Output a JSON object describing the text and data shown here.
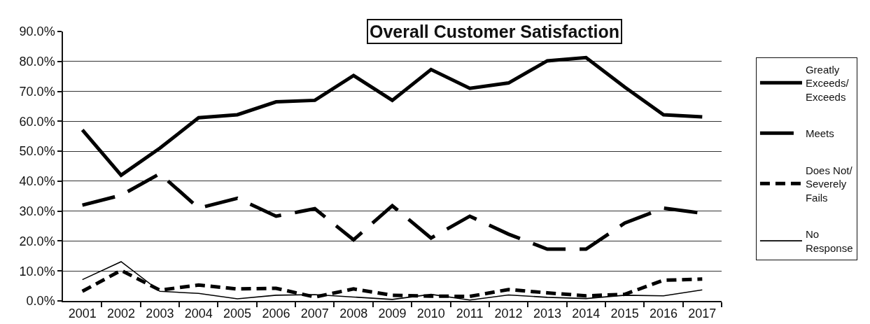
{
  "chart_data": {
    "type": "line",
    "title": "Overall Customer Satisfaction",
    "categories": [
      "2001",
      "2002",
      "2003",
      "2004",
      "2005",
      "2006",
      "2007",
      "2008",
      "2009",
      "2010",
      "2011",
      "2012",
      "2013",
      "2014",
      "2015",
      "2016",
      "2017"
    ],
    "series": [
      {
        "name": "Greatly Exceeds/Exceeds",
        "color": "#000000",
        "line_style": "solid",
        "values": [
          57.1,
          42.0,
          51.0,
          61.2,
          62.2,
          66.5,
          67.0,
          75.3,
          67.0,
          77.3,
          71.0,
          72.8,
          80.2,
          81.3,
          71.4,
          62.2,
          61.5
        ]
      },
      {
        "name": "Meets",
        "color": "#000000",
        "line_style": "dashed",
        "values": [
          32.0,
          35.3,
          42.5,
          31.0,
          34.3,
          28.3,
          30.8,
          20.4,
          31.8,
          21.0,
          28.3,
          22.3,
          17.3,
          17.3,
          26.0,
          31.0,
          29.3
        ]
      },
      {
        "name": "Does Not/Severely Fails",
        "color": "#000000",
        "line_style": "dotted",
        "values": [
          3.2,
          10.2,
          3.6,
          5.3,
          4.0,
          4.2,
          1.3,
          4.0,
          1.9,
          1.6,
          1.5,
          3.8,
          2.7,
          1.7,
          2.2,
          6.9,
          7.3
        ]
      },
      {
        "name": "No Response",
        "color": "#000000",
        "line_style": "solid",
        "values": [
          7.1,
          13.1,
          3.2,
          2.5,
          0.7,
          1.9,
          2.1,
          1.3,
          0.5,
          2.2,
          0.3,
          2.0,
          1.2,
          0.8,
          1.9,
          1.7,
          3.7
        ]
      }
    ],
    "ylim": [
      0,
      90
    ],
    "yticks": [
      {
        "value": 0,
        "label": "0.0%"
      },
      {
        "value": 10,
        "label": "10.0%"
      },
      {
        "value": 20,
        "label": "20.0%"
      },
      {
        "value": 30,
        "label": "30.0%"
      },
      {
        "value": 40,
        "label": "40.0%"
      },
      {
        "value": 50,
        "label": "50.0%"
      },
      {
        "value": 60,
        "label": "60.0%"
      },
      {
        "value": 70,
        "label": "70.0%"
      },
      {
        "value": 80,
        "label": "80.0%"
      },
      {
        "value": 90,
        "label": "90.0%"
      }
    ],
    "grid": "y",
    "legend": "right"
  }
}
